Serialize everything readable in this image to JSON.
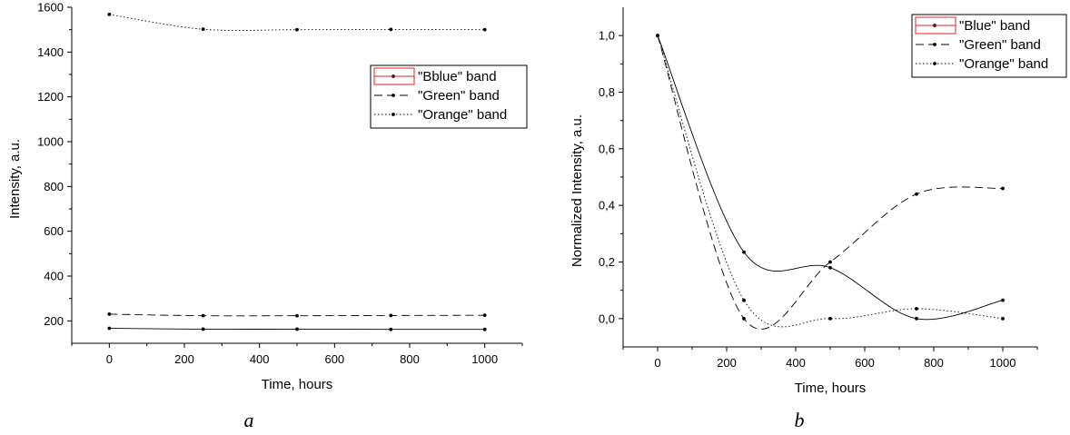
{
  "chart_data": [
    {
      "type": "line",
      "panel_label": "a",
      "xlabel": "Time, hours",
      "ylabel": "Intensity, a.u.",
      "xlim": [
        -100,
        1100
      ],
      "ylim": [
        100,
        1600
      ],
      "xticks": [
        0,
        200,
        400,
        600,
        800,
        1000
      ],
      "xtick_labels": [
        "0",
        "200",
        "400",
        "600",
        "800",
        "1000"
      ],
      "yticks": [
        200,
        400,
        600,
        800,
        1000,
        1200,
        1400,
        1600
      ],
      "ytick_labels": [
        "200",
        "400",
        "600",
        "800",
        "1000",
        "1200",
        "1400",
        "1600"
      ],
      "x": [
        0,
        250,
        500,
        750,
        1000
      ],
      "series": [
        {
          "name": "\"Bblue\" band",
          "values": [
            167,
            163,
            163,
            162,
            162
          ],
          "line_style": "solid"
        },
        {
          "name": "\"Green\" band",
          "values": [
            230,
            223,
            223,
            224,
            225
          ],
          "line_style": "dashed"
        },
        {
          "name": "\"Orange\" band",
          "values": [
            1568,
            1502,
            1500,
            1501,
            1500
          ],
          "line_style": "dotted"
        }
      ],
      "legend_position": "upper-right",
      "grid": false
    },
    {
      "type": "line",
      "panel_label": "b",
      "xlabel": "Time, hours",
      "ylabel": "Normalized Intensity, a.u.",
      "xlim": [
        -100,
        1100
      ],
      "ylim": [
        -0.1,
        1.1
      ],
      "xticks": [
        0,
        200,
        400,
        600,
        800,
        1000
      ],
      "xtick_labels": [
        "0",
        "200",
        "400",
        "600",
        "800",
        "1000"
      ],
      "yticks": [
        0,
        0.2,
        0.4,
        0.6,
        0.8,
        1.0
      ],
      "ytick_labels": [
        "0,0",
        "0,2",
        "0,4",
        "0,6",
        "0,8",
        "1,0"
      ],
      "x": [
        0,
        250,
        500,
        750,
        1000
      ],
      "series": [
        {
          "name": "\"Blue\" band",
          "values": [
            1.0,
            0.235,
            0.18,
            0.0,
            0.065
          ],
          "line_style": "solid"
        },
        {
          "name": "\"Green\" band",
          "values": [
            1.0,
            0.0,
            0.2,
            0.44,
            0.46
          ],
          "line_style": "dashed"
        },
        {
          "name": "\"Orange\" band",
          "values": [
            1.0,
            0.065,
            0.0,
            0.035,
            0.0
          ],
          "line_style": "dotted"
        }
      ],
      "legend_position": "upper-right",
      "grid": false
    }
  ]
}
